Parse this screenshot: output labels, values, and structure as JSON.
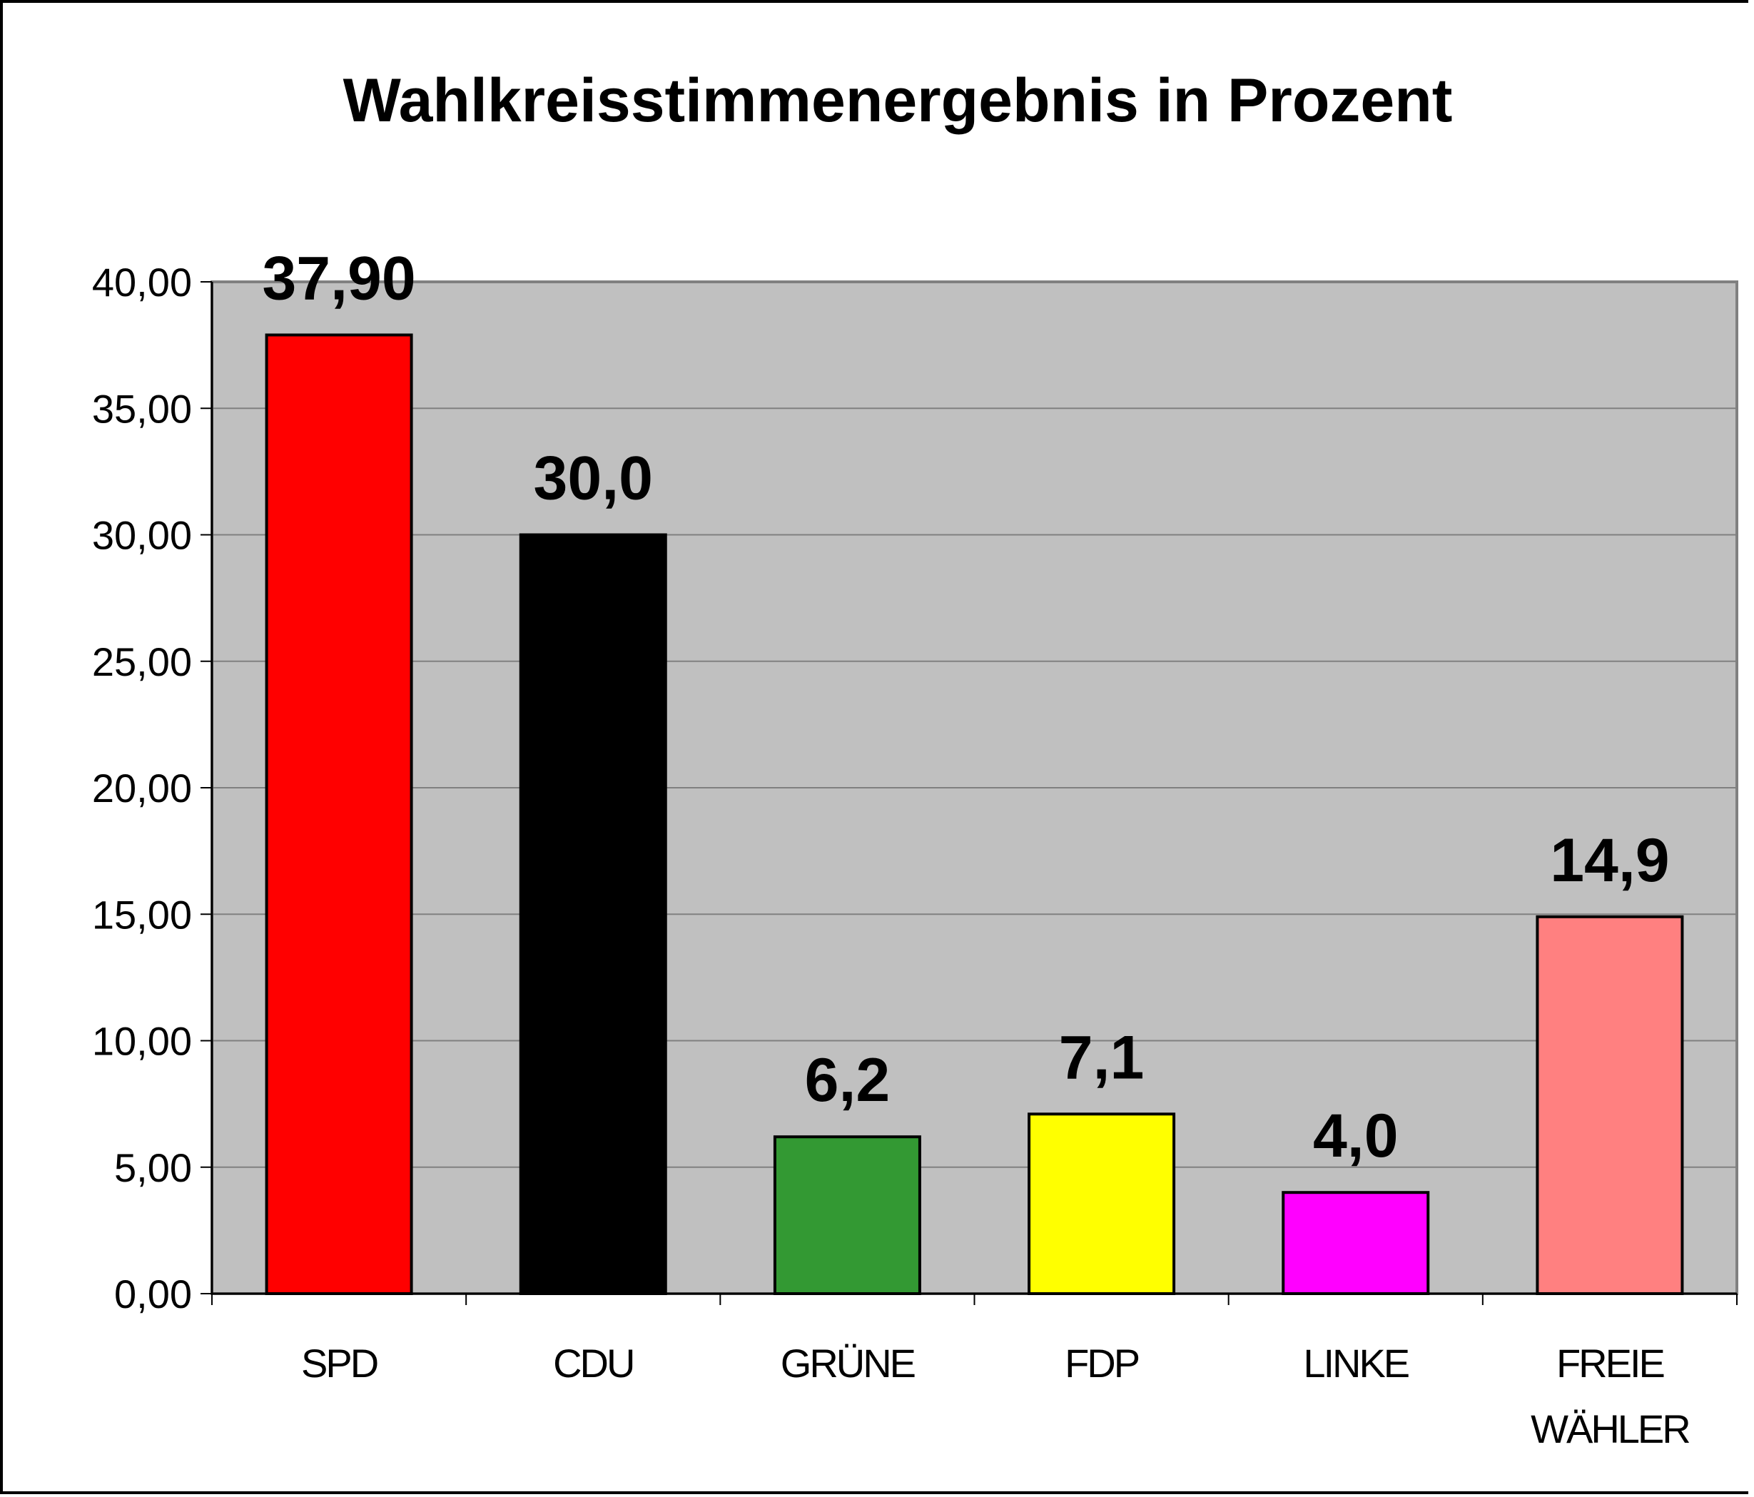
{
  "chart_data": {
    "type": "bar",
    "title": "Wahlkreisstimmenergebnis in Prozent",
    "xlabel": "",
    "ylabel": "",
    "ylim": [
      0,
      40
    ],
    "yticks": [
      "0,00",
      "5,00",
      "10,00",
      "15,00",
      "20,00",
      "25,00",
      "30,00",
      "35,00",
      "40,00"
    ],
    "grid": true,
    "legend": "none",
    "plot_background": "#c0c0c0",
    "categories": [
      {
        "label_lines": [
          "SPD"
        ]
      },
      {
        "label_lines": [
          "CDU"
        ]
      },
      {
        "label_lines": [
          "GRÜNE"
        ]
      },
      {
        "label_lines": [
          "FDP"
        ]
      },
      {
        "label_lines": [
          "LINKE"
        ]
      },
      {
        "label_lines": [
          "FREIE",
          "WÄHLER"
        ]
      }
    ],
    "values": [
      37.9,
      30.0,
      6.2,
      7.1,
      4.0,
      14.9
    ],
    "data_labels": [
      "37,90",
      "30,0",
      "6,2",
      "7,1",
      "4,0",
      "14,9"
    ],
    "colors": [
      "#ff0000",
      "#000000",
      "#339933",
      "#ffff00",
      "#ff00ff",
      "#ff8080"
    ]
  }
}
